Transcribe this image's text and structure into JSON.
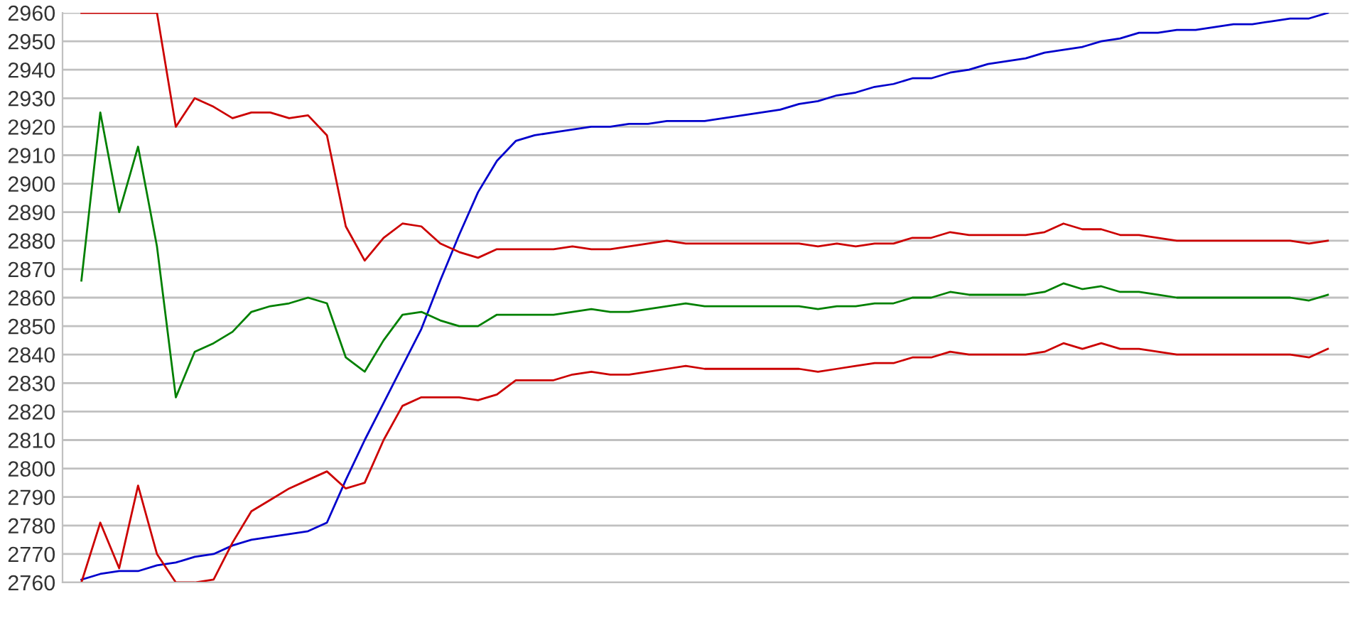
{
  "chart_data": {
    "type": "line",
    "categories": [
      null,
      null,
      null,
      null,
      null,
      null,
      null,
      null,
      null,
      null,
      null,
      null,
      null,
      null,
      null,
      null,
      null,
      null,
      null,
      null,
      null,
      null,
      null,
      null,
      null,
      null,
      null,
      null,
      null,
      null,
      null,
      null,
      null,
      null,
      null,
      null,
      null,
      null,
      null,
      null,
      null,
      null,
      null,
      null,
      null,
      null,
      null,
      null,
      null,
      null,
      null,
      null,
      null,
      null,
      null,
      null,
      null,
      null,
      null,
      null,
      null,
      null,
      null,
      null,
      null,
      null,
      null
    ],
    "series": [
      {
        "color": "#0000cc",
        "values": [
          2761,
          2763,
          2764,
          2764,
          2766,
          2767,
          2769,
          2770,
          2773,
          2775,
          2776,
          2777,
          2778,
          2781,
          2796,
          2810,
          2823,
          2836,
          2849,
          2866,
          2882,
          2897,
          2908,
          2915,
          2917,
          2918,
          2919,
          2920,
          2920,
          2921,
          2921,
          2922,
          2922,
          2922,
          2923,
          2924,
          2925,
          2926,
          2928,
          2929,
          2931,
          2932,
          2934,
          2935,
          2937,
          2937,
          2939,
          2940,
          2942,
          2943,
          2944,
          2946,
          2947,
          2948,
          2950,
          2951,
          2953,
          2953,
          2954,
          2954,
          2955,
          2956,
          2956,
          2957,
          2958,
          2958,
          2960
        ]
      },
      {
        "color": "#cc0000",
        "values": [
          2960,
          2960,
          2960,
          2960,
          2960,
          2920,
          2930,
          2927,
          2923,
          2925,
          2925,
          2923,
          2924,
          2917,
          2885,
          2873,
          2881,
          2886,
          2885,
          2879,
          2876,
          2874,
          2877,
          2877,
          2877,
          2877,
          2878,
          2877,
          2877,
          2878,
          2879,
          2880,
          2879,
          2879,
          2879,
          2879,
          2879,
          2879,
          2879,
          2878,
          2879,
          2878,
          2879,
          2879,
          2881,
          2881,
          2883,
          2882,
          2882,
          2882,
          2882,
          2883,
          2886,
          2884,
          2884,
          2882,
          2882,
          2881,
          2880,
          2880,
          2880,
          2880,
          2880,
          2880,
          2880,
          2879,
          2880
        ]
      },
      {
        "color": "#008000",
        "values": [
          2866,
          2925,
          2890,
          2913,
          2878,
          2825,
          2841,
          2844,
          2848,
          2855,
          2857,
          2858,
          2860,
          2858,
          2839,
          2834,
          2845,
          2854,
          2855,
          2852,
          2850,
          2850,
          2854,
          2854,
          2854,
          2854,
          2855,
          2856,
          2855,
          2855,
          2856,
          2857,
          2858,
          2857,
          2857,
          2857,
          2857,
          2857,
          2857,
          2856,
          2857,
          2857,
          2858,
          2858,
          2860,
          2860,
          2862,
          2861,
          2861,
          2861,
          2861,
          2862,
          2865,
          2863,
          2864,
          2862,
          2862,
          2861,
          2860,
          2860,
          2860,
          2860,
          2860,
          2860,
          2860,
          2859,
          2861
        ]
      },
      {
        "color": "#cc0000",
        "values": [
          2760,
          2781,
          2765,
          2794,
          2770,
          2760,
          2760,
          2761,
          2774,
          2785,
          2789,
          2793,
          2796,
          2799,
          2793,
          2795,
          2810,
          2822,
          2825,
          2825,
          2825,
          2824,
          2826,
          2831,
          2831,
          2831,
          2833,
          2834,
          2833,
          2833,
          2834,
          2835,
          2836,
          2835,
          2835,
          2835,
          2835,
          2835,
          2835,
          2834,
          2835,
          2836,
          2837,
          2837,
          2839,
          2839,
          2841,
          2840,
          2840,
          2840,
          2840,
          2841,
          2844,
          2842,
          2844,
          2842,
          2842,
          2841,
          2840,
          2840,
          2840,
          2840,
          2840,
          2840,
          2840,
          2839,
          2842
        ]
      }
    ],
    "ylim": [
      2760,
      2960
    ],
    "yticks": [
      2760,
      2770,
      2780,
      2790,
      2800,
      2810,
      2820,
      2830,
      2840,
      2850,
      2860,
      2870,
      2880,
      2890,
      2900,
      2910,
      2920,
      2930,
      2940,
      2950,
      2960
    ],
    "grid": "y",
    "tick_labels": "y"
  }
}
